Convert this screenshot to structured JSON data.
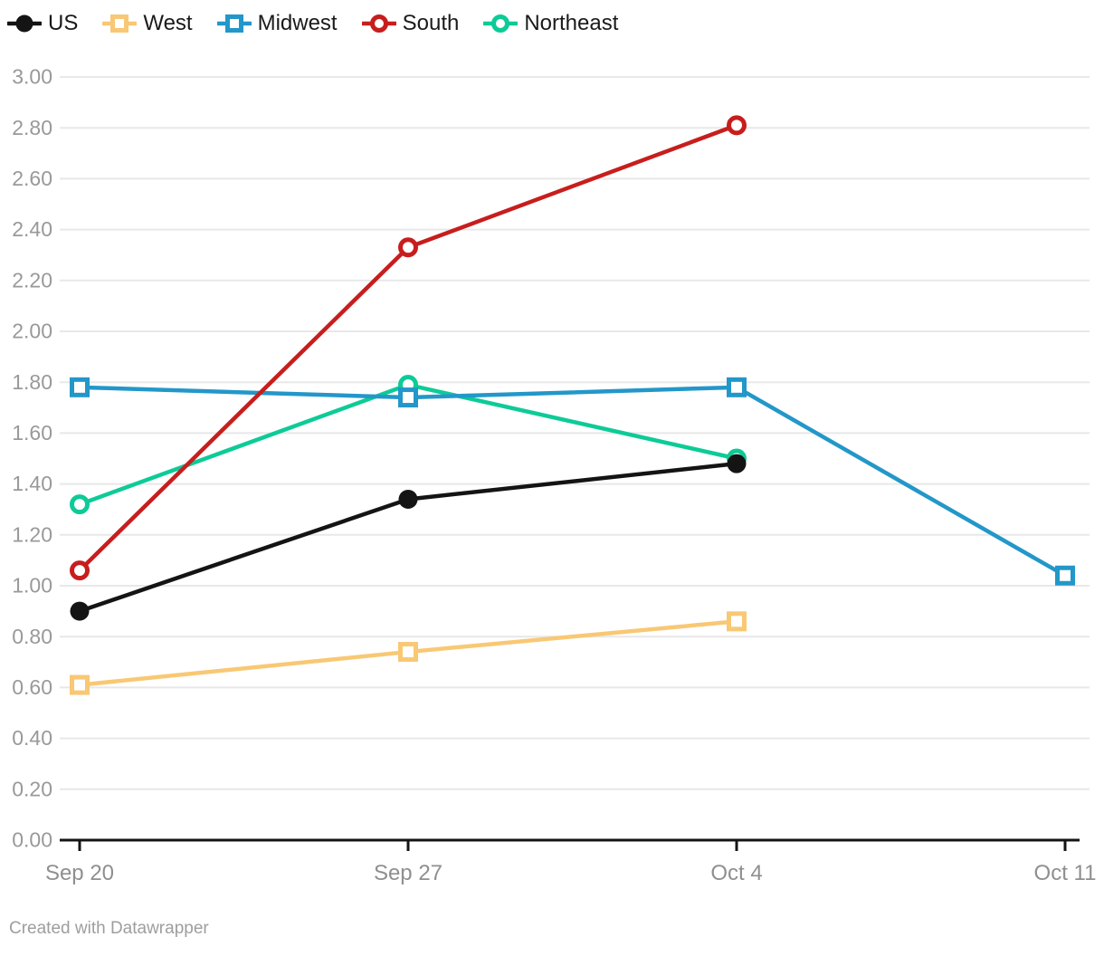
{
  "chart_data": {
    "type": "line",
    "x_categories": [
      "Sep 20",
      "Sep 27",
      "Oct 4",
      "Oct 11"
    ],
    "y_axis": {
      "min": 0,
      "max": 3,
      "tick_step": 0.2,
      "tick_labels": [
        "0.00",
        "0.20",
        "0.40",
        "0.60",
        "0.80",
        "1.00",
        "1.20",
        "1.40",
        "1.60",
        "1.80",
        "2.00",
        "2.20",
        "2.40",
        "2.60",
        "2.80",
        "3.00"
      ]
    },
    "grid": true,
    "legend_position": "top-left",
    "series": [
      {
        "name": "US",
        "color": "#141414",
        "marker": "filled-circle",
        "values": [
          0.9,
          1.34,
          1.48,
          null
        ]
      },
      {
        "name": "West",
        "color": "#f8c874",
        "marker": "open-square",
        "values": [
          0.61,
          0.74,
          0.86,
          null
        ]
      },
      {
        "name": "Midwest",
        "color": "#2397c9",
        "marker": "open-square",
        "values": [
          1.78,
          1.74,
          1.78,
          1.04
        ]
      },
      {
        "name": "South",
        "color": "#c71e1d",
        "marker": "open-circle",
        "values": [
          1.06,
          2.33,
          2.81,
          null
        ]
      },
      {
        "name": "Northeast",
        "color": "#0dcb97",
        "marker": "open-circle",
        "values": [
          1.32,
          1.79,
          1.5,
          null
        ]
      }
    ],
    "draw_order": [
      "West",
      "Northeast",
      "Midwest",
      "South",
      "US"
    ]
  },
  "footer": {
    "credit": "Created with Datawrapper"
  }
}
